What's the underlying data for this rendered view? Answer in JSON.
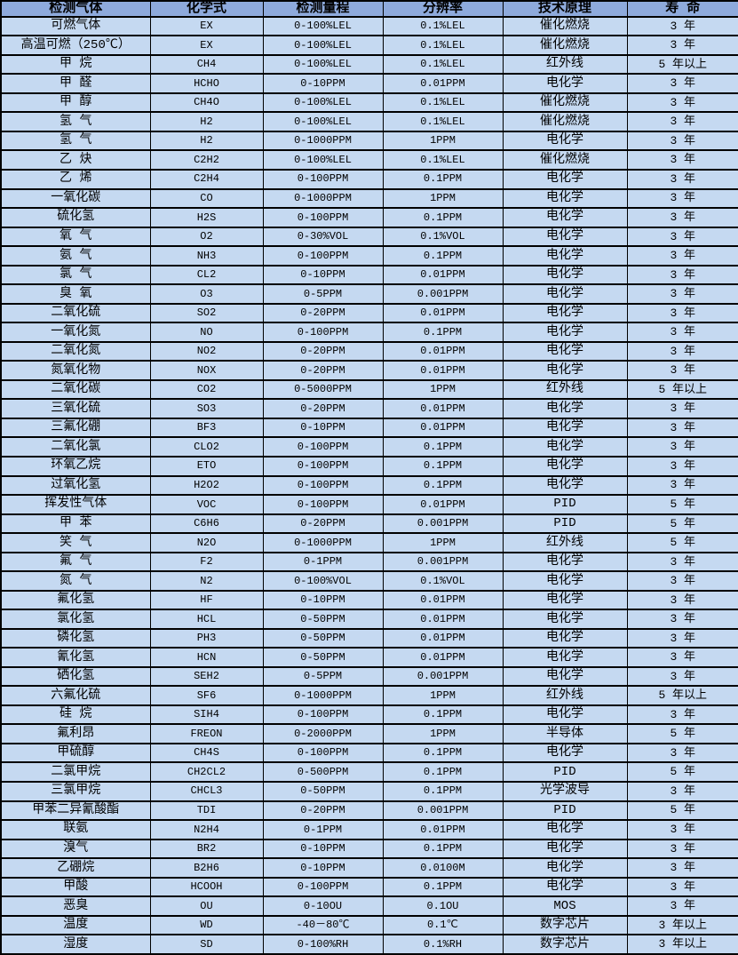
{
  "colors": {
    "header_bg": "#8EAADC",
    "row_bg": "#C5D9F1",
    "border": "#000000",
    "text": "#000000"
  },
  "table": {
    "columns": [
      "检测气体",
      "化学式",
      "检测量程",
      "分辨率",
      "技术原理",
      "寿 命"
    ],
    "rows": [
      [
        "可燃气体",
        "EX",
        "0-100%LEL",
        "0.1%LEL",
        "催化燃烧",
        "3 年"
      ],
      [
        "高温可燃（250℃）",
        "EX",
        "0-100%LEL",
        "0.1%LEL",
        "催化燃烧",
        "3 年"
      ],
      [
        "甲 烷",
        "CH4",
        "0-100%LEL",
        "0.1%LEL",
        "红外线",
        "5 年以上"
      ],
      [
        "甲 醛",
        "HCHO",
        "0-10PPM",
        "0.01PPM",
        "电化学",
        "3 年"
      ],
      [
        "甲 醇",
        "CH4O",
        "0-100%LEL",
        "0.1%LEL",
        "催化燃烧",
        "3 年"
      ],
      [
        "氢 气",
        "H2",
        "0-100%LEL",
        "0.1%LEL",
        "催化燃烧",
        "3 年"
      ],
      [
        "氢 气",
        "H2",
        "0-1000PPM",
        "1PPM",
        "电化学",
        "3 年"
      ],
      [
        "乙 炔",
        "C2H2",
        "0-100%LEL",
        "0.1%LEL",
        "催化燃烧",
        "3 年"
      ],
      [
        "乙 烯",
        "C2H4",
        "0-100PPM",
        "0.1PPM",
        "电化学",
        "3 年"
      ],
      [
        "一氧化碳",
        "CO",
        "0-1000PPM",
        "1PPM",
        "电化学",
        "3 年"
      ],
      [
        "硫化氢",
        "H2S",
        "0-100PPM",
        "0.1PPM",
        "电化学",
        "3 年"
      ],
      [
        "氧 气",
        "O2",
        "0-30%VOL",
        "0.1%VOL",
        "电化学",
        "3 年"
      ],
      [
        "氨 气",
        "NH3",
        "0-100PPM",
        "0.1PPM",
        "电化学",
        "3 年"
      ],
      [
        "氯 气",
        "CL2",
        "0-10PPM",
        "0.01PPM",
        "电化学",
        "3 年"
      ],
      [
        "臭 氧",
        "O3",
        "0-5PPM",
        "0.001PPM",
        "电化学",
        "3 年"
      ],
      [
        "二氧化硫",
        "SO2",
        "0-20PPM",
        "0.01PPM",
        "电化学",
        "3 年"
      ],
      [
        "一氧化氮",
        "NO",
        "0-100PPM",
        "0.1PPM",
        "电化学",
        "3 年"
      ],
      [
        "二氧化氮",
        "NO2",
        "0-20PPM",
        "0.01PPM",
        "电化学",
        "3 年"
      ],
      [
        "氮氧化物",
        "NOX",
        "0-20PPM",
        "0.01PPM",
        "电化学",
        "3 年"
      ],
      [
        "二氧化碳",
        "CO2",
        "0-5000PPM",
        "1PPM",
        "红外线",
        "5 年以上"
      ],
      [
        "三氧化硫",
        "SO3",
        "0-20PPM",
        "0.01PPM",
        "电化学",
        "3 年"
      ],
      [
        "三氟化硼",
        "BF3",
        "0-10PPM",
        "0.01PPM",
        "电化学",
        "3 年"
      ],
      [
        "二氧化氯",
        "CLO2",
        "0-100PPM",
        "0.1PPM",
        "电化学",
        "3 年"
      ],
      [
        "环氧乙烷",
        "ETO",
        "0-100PPM",
        "0.1PPM",
        "电化学",
        "3 年"
      ],
      [
        "过氧化氢",
        "H2O2",
        "0-100PPM",
        "0.1PPM",
        "电化学",
        "3 年"
      ],
      [
        "挥发性气体",
        "VOC",
        "0-100PPM",
        "0.01PPM",
        "PID",
        "5 年"
      ],
      [
        "甲 苯",
        "C6H6",
        "0-20PPM",
        "0.001PPM",
        "PID",
        "5 年"
      ],
      [
        "笑 气",
        "N2O",
        "0-1000PPM",
        "1PPM",
        "红外线",
        "5 年"
      ],
      [
        "氟 气",
        "F2",
        "0-1PPM",
        "0.001PPM",
        "电化学",
        "3 年"
      ],
      [
        "氮 气",
        "N2",
        "0-100%VOL",
        "0.1%VOL",
        "电化学",
        "3 年"
      ],
      [
        "氟化氢",
        "HF",
        "0-10PPM",
        "0.01PPM",
        "电化学",
        "3 年"
      ],
      [
        "氯化氢",
        "HCL",
        "0-50PPM",
        "0.01PPM",
        "电化学",
        "3 年"
      ],
      [
        "磷化氢",
        "PH3",
        "0-50PPM",
        "0.01PPM",
        "电化学",
        "3 年"
      ],
      [
        "氰化氢",
        "HCN",
        "0-50PPM",
        "0.01PPM",
        "电化学",
        "3 年"
      ],
      [
        "硒化氢",
        "SEH2",
        "0-5PPM",
        "0.001PPM",
        "电化学",
        "3 年"
      ],
      [
        "六氟化硫",
        "SF6",
        "0-1000PPM",
        "1PPM",
        "红外线",
        "5 年以上"
      ],
      [
        "硅 烷",
        "SIH4",
        "0-100PPM",
        "0.1PPM",
        "电化学",
        "3 年"
      ],
      [
        "氟利昂",
        "FREON",
        "0-2000PPM",
        "1PPM",
        "半导体",
        "5 年"
      ],
      [
        "甲硫醇",
        "CH4S",
        "0-100PPM",
        "0.1PPM",
        "电化学",
        "3 年"
      ],
      [
        "二氯甲烷",
        "CH2CL2",
        "0-500PPM",
        "0.1PPM",
        "PID",
        "5 年"
      ],
      [
        "三氯甲烷",
        "CHCL3",
        "0-50PPM",
        "0.1PPM",
        "光学波导",
        "3 年"
      ],
      [
        "甲苯二异氰酸酯",
        "TDI",
        "0-20PPM",
        "0.001PPM",
        "PID",
        "5 年"
      ],
      [
        "联氨",
        "N2H4",
        "0-1PPM",
        "0.01PPM",
        "电化学",
        "3 年"
      ],
      [
        "溴气",
        "BR2",
        "0-10PPM",
        "0.1PPM",
        "电化学",
        "3 年"
      ],
      [
        "乙硼烷",
        "B2H6",
        "0-10PPM",
        "0.0100M",
        "电化学",
        "3 年"
      ],
      [
        "甲酸",
        "HCOOH",
        "0-100PPM",
        "0.1PPM",
        "电化学",
        "3 年"
      ],
      [
        "恶臭",
        "OU",
        "0-10OU",
        "0.1OU",
        "MOS",
        "3 年"
      ],
      [
        "温度",
        "WD",
        "-40－80℃",
        "0.1℃",
        "数字芯片",
        "3 年以上"
      ],
      [
        "湿度",
        "SD",
        "0-100%RH",
        "0.1%RH",
        "数字芯片",
        "3 年以上"
      ]
    ]
  }
}
